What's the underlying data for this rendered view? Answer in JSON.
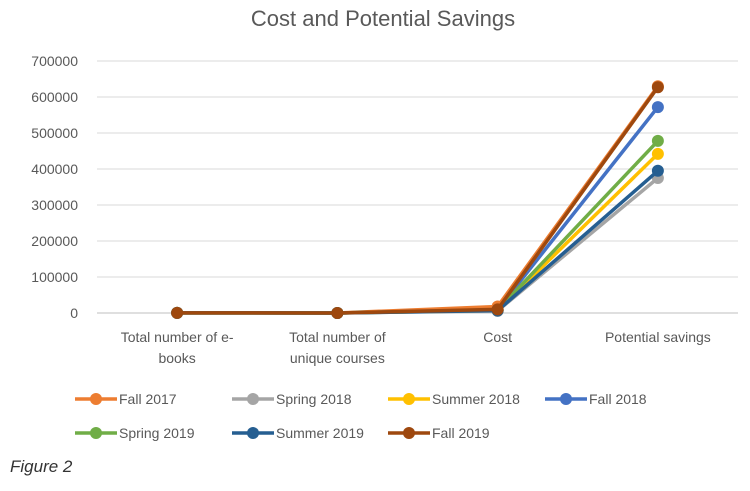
{
  "chart_data": {
    "type": "line",
    "title": "Cost and Potential Savings",
    "categories": [
      [
        "Total number of e-",
        "books"
      ],
      [
        "Total number of",
        "unique courses"
      ],
      [
        "Cost"
      ],
      [
        "Potential savings"
      ]
    ],
    "ylim": [
      0,
      700000
    ],
    "yticks": [
      "0",
      "100000",
      "200000",
      "300000",
      "400000",
      "500000",
      "600000",
      "700000"
    ],
    "grid": true,
    "legend_position": "bottom",
    "series": [
      {
        "name": "Fall 2017",
        "color": "#ED7D31",
        "values": [
          400,
          100,
          18000,
          630000
        ]
      },
      {
        "name": "Spring 2018",
        "color": "#A5A5A5",
        "values": [
          400,
          100,
          6000,
          375000
        ]
      },
      {
        "name": "Summer 2018",
        "color": "#FFC000",
        "values": [
          400,
          100,
          7000,
          442000
        ]
      },
      {
        "name": "Fall 2018",
        "color": "#4472C4",
        "values": [
          400,
          100,
          9000,
          572000
        ]
      },
      {
        "name": "Spring 2019",
        "color": "#70AD47",
        "values": [
          400,
          100,
          8000,
          478000
        ]
      },
      {
        "name": "Summer 2019",
        "color": "#255E91",
        "values": [
          400,
          100,
          6500,
          395000
        ]
      },
      {
        "name": "Fall 2019",
        "color": "#9E480E",
        "values": [
          400,
          100,
          10000,
          627000
        ]
      }
    ]
  },
  "caption": "Figure 2"
}
